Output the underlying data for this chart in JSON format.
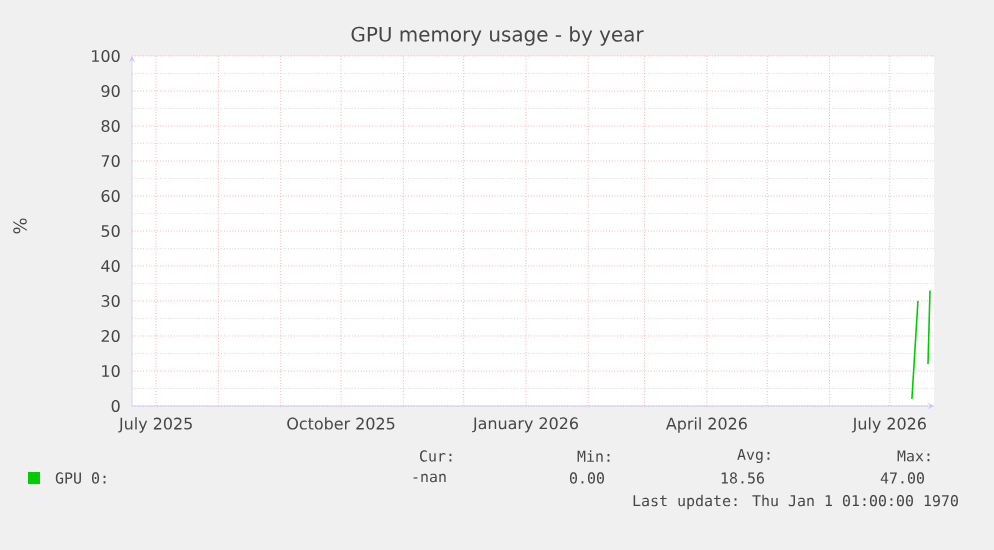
{
  "chart_data": {
    "type": "line",
    "title": "GPU memory usage - by year",
    "ylabel": "%",
    "x": [
      "2026-07-12",
      "2026-07-15",
      "2026-07-18",
      "2026-07-20",
      "2026-07-21"
    ],
    "series": [
      {
        "name": "GPU 0:",
        "color": "#00cc00",
        "values": [
          2,
          30,
          null,
          12,
          33
        ]
      }
    ],
    "xlim": [
      "2025-06-19",
      "2026-07-23"
    ],
    "xticks": [
      {
        "value": "2025-07-01",
        "label": "July 2025"
      },
      {
        "value": "2025-08-01",
        "label": null
      },
      {
        "value": "2025-09-01",
        "label": null
      },
      {
        "value": "2025-10-01",
        "label": "October 2025"
      },
      {
        "value": "2025-11-01",
        "label": null
      },
      {
        "value": "2025-12-01",
        "label": null
      },
      {
        "value": "2026-01-01",
        "label": "January 2026"
      },
      {
        "value": "2026-02-01",
        "label": null
      },
      {
        "value": "2026-03-01",
        "label": null
      },
      {
        "value": "2026-04-01",
        "label": "April 2026"
      },
      {
        "value": "2026-05-01",
        "label": null
      },
      {
        "value": "2026-06-01",
        "label": null
      },
      {
        "value": "2026-07-01",
        "label": "July 2026"
      }
    ],
    "ylim": [
      0,
      100
    ],
    "yticks": [
      0,
      10,
      20,
      30,
      40,
      50,
      60,
      70,
      80,
      90,
      100
    ],
    "grid": true,
    "legend": "bottom",
    "marker": "none",
    "line_style": "solid",
    "annotations": [
      "Cur:",
      "Min:",
      "Avg:",
      "Max:",
      "-nan",
      "0.00",
      "18.56",
      "47.00",
      "Last update: Thu Jan  1 01:00:00 1970"
    ]
  }
}
